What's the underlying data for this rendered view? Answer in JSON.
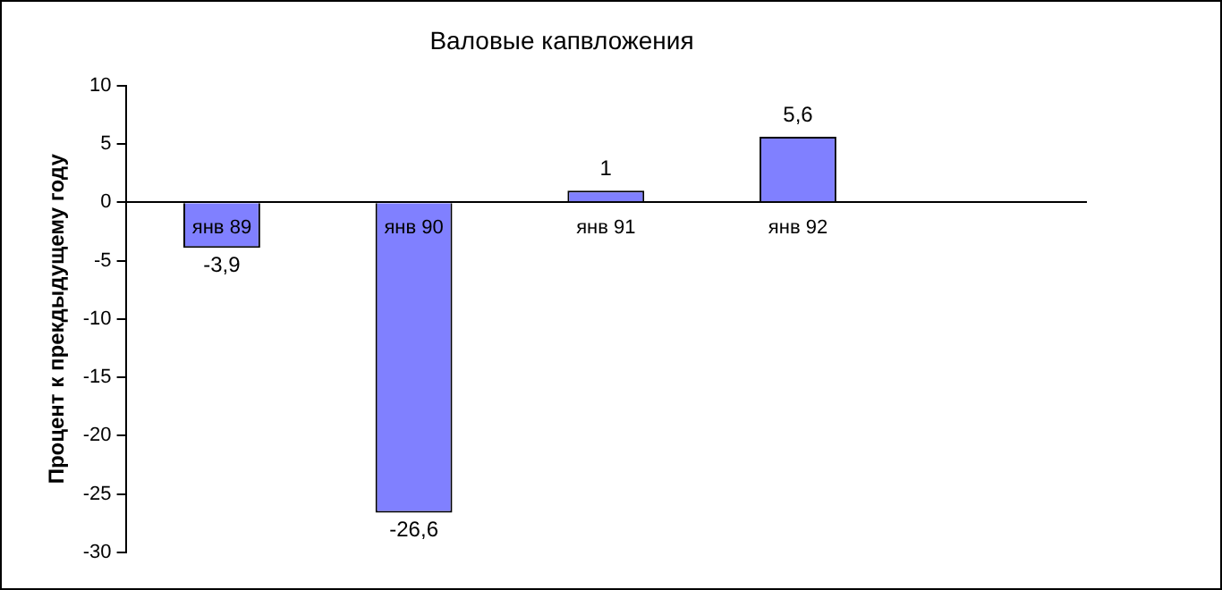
{
  "chart_data": {
    "type": "bar",
    "title": "Валовые капвложения",
    "ylabel": "Процент к прекдыдущему году",
    "categories": [
      "янв 89",
      "янв 90",
      "янв 91",
      "янв 92",
      null
    ],
    "values": [
      -3.9,
      -26.6,
      1,
      5.6,
      null
    ],
    "value_labels": [
      "-3,9",
      "-26,6",
      "1",
      "5,6",
      null
    ],
    "color": "#8080ff",
    "ylim": [
      -30,
      10
    ],
    "yticks": [
      -30,
      -25,
      -20,
      -15,
      -10,
      -5,
      0,
      5,
      10
    ],
    "grid": false,
    "legend": false
  }
}
